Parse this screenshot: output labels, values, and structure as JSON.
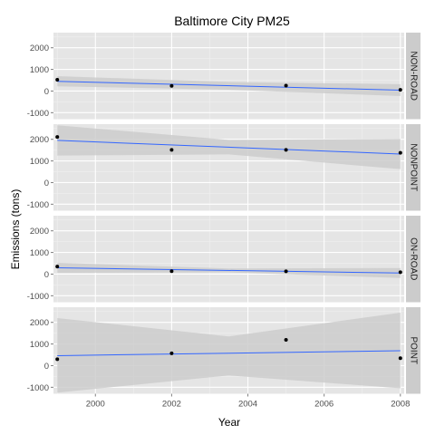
{
  "chart_data": {
    "type": "scatter",
    "title": "Baltimore City PM25",
    "xlabel": "Year",
    "ylabel": "Emissions (tons)",
    "xlim": [
      1998.9,
      2008.1
    ],
    "ylim": [
      -1300,
      2700
    ],
    "x_ticks": [
      2000,
      2002,
      2004,
      2006,
      2008
    ],
    "y_ticks": [
      -1000,
      0,
      1000,
      2000
    ],
    "facet_direction": "rows",
    "strip_position": "right",
    "panel_background": "#e5e5e5",
    "gridline_color": "#ffffff",
    "point_color": "#000000",
    "trend_color": "#3366ff",
    "band_color": "#cccccc",
    "trend_method": "linear regression with confidence band",
    "panels": [
      {
        "label": "NON-ROAD",
        "points": [
          {
            "x": 1999,
            "y": 522
          },
          {
            "x": 2002,
            "y": 241
          },
          {
            "x": 2005,
            "y": 248
          },
          {
            "x": 2008,
            "y": 55
          }
        ],
        "trend": {
          "x": [
            1999,
            2008
          ],
          "y": [
            450,
            40
          ]
        },
        "band_lower": {
          "x": [
            1999,
            2003.5,
            2008
          ],
          "y": [
            220,
            60,
            -230
          ]
        },
        "band_upper": {
          "x": [
            1999,
            2003.5,
            2008
          ],
          "y": [
            690,
            420,
            320
          ]
        }
      },
      {
        "label": "NONPOINT",
        "points": [
          {
            "x": 1999,
            "y": 2108
          },
          {
            "x": 2002,
            "y": 1510
          },
          {
            "x": 2005,
            "y": 1510
          },
          {
            "x": 2008,
            "y": 1373
          }
        ],
        "trend": {
          "x": [
            1999,
            2008
          ],
          "y": [
            1950,
            1320
          ]
        },
        "band_lower": {
          "x": [
            1999,
            2003.5,
            2008
          ],
          "y": [
            1250,
            1300,
            620
          ]
        },
        "band_upper": {
          "x": [
            1999,
            2003.5,
            2008
          ],
          "y": [
            2650,
            1970,
            2020
          ]
        }
      },
      {
        "label": "ON-ROAD",
        "points": [
          {
            "x": 1999,
            "y": 347
          },
          {
            "x": 2002,
            "y": 134
          },
          {
            "x": 2005,
            "y": 130
          },
          {
            "x": 2008,
            "y": 88
          }
        ],
        "trend": {
          "x": [
            1999,
            2008
          ],
          "y": [
            290,
            50
          ]
        },
        "band_lower": {
          "x": [
            1999,
            2003.5,
            2008
          ],
          "y": [
            60,
            80,
            -180
          ]
        },
        "band_upper": {
          "x": [
            1999,
            2003.5,
            2008
          ],
          "y": [
            520,
            260,
            280
          ]
        }
      },
      {
        "label": "POINT",
        "points": [
          {
            "x": 1999,
            "y": 296
          },
          {
            "x": 2002,
            "y": 569
          },
          {
            "x": 2005,
            "y": 1193
          },
          {
            "x": 2008,
            "y": 345
          }
        ],
        "trend": {
          "x": [
            1999,
            2008
          ],
          "y": [
            460,
            690
          ]
        },
        "band_lower": {
          "x": [
            1999,
            2003.5,
            2008
          ],
          "y": [
            -1250,
            -450,
            -1050
          ]
        },
        "band_upper": {
          "x": [
            1999,
            2003.5,
            2008
          ],
          "y": [
            2200,
            1350,
            2450
          ]
        }
      }
    ]
  }
}
